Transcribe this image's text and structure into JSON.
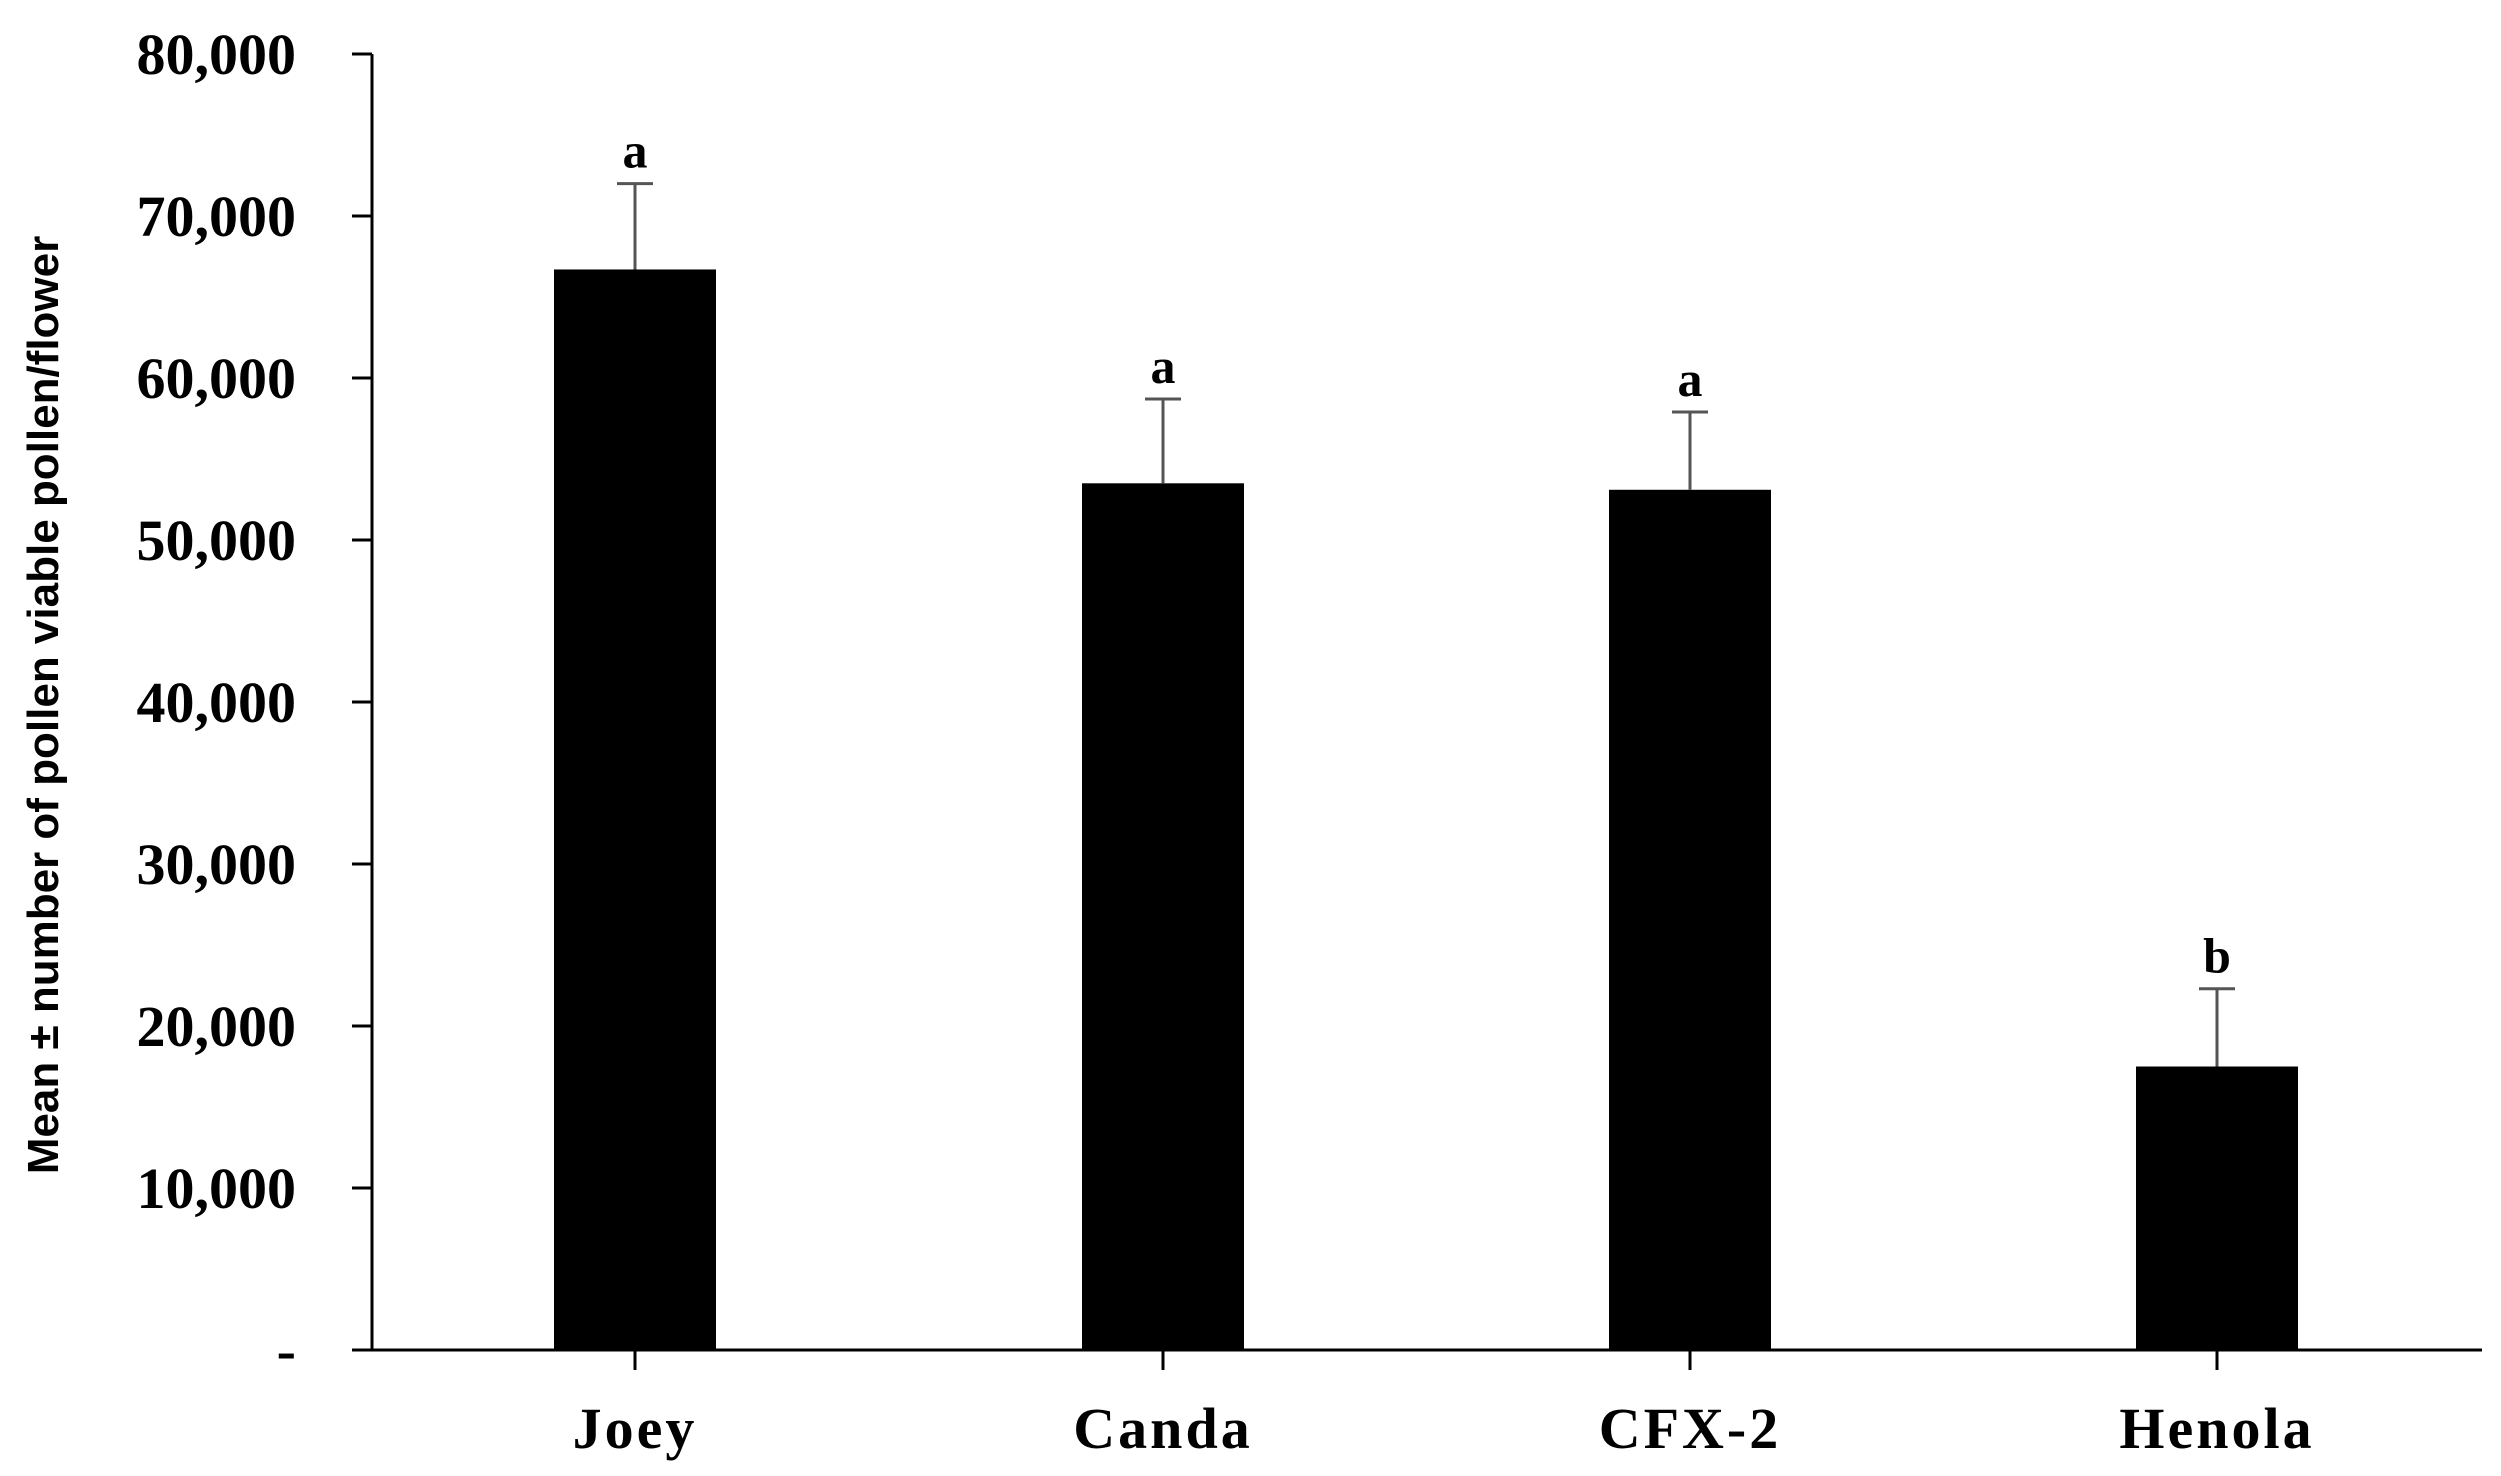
{
  "chart_data": {
    "type": "bar",
    "title": "",
    "xlabel": "",
    "ylabel": "Mean ± number of pollen viable pollen/flower",
    "categories": [
      "Joey",
      "Canda",
      "CFX-2",
      "Henola"
    ],
    "series": [
      {
        "values": [
          66700,
          53500,
          53100,
          17500
        ],
        "error": [
          5300,
          5200,
          4800,
          4800
        ],
        "significance": [
          "a",
          "a",
          "a",
          "b"
        ]
      }
    ],
    "ylim": [
      0,
      80000
    ],
    "yticks": [
      0,
      10000,
      20000,
      30000,
      40000,
      50000,
      60000,
      70000,
      80000
    ],
    "ytick_labels": [
      "-",
      "10,000",
      "20,000",
      "30,000",
      "40,000",
      "50,000",
      "60,000",
      "70,000",
      "80,000"
    ],
    "grid": false,
    "legend": "none",
    "bar_color": "#000000",
    "axis_color": "#000000"
  }
}
